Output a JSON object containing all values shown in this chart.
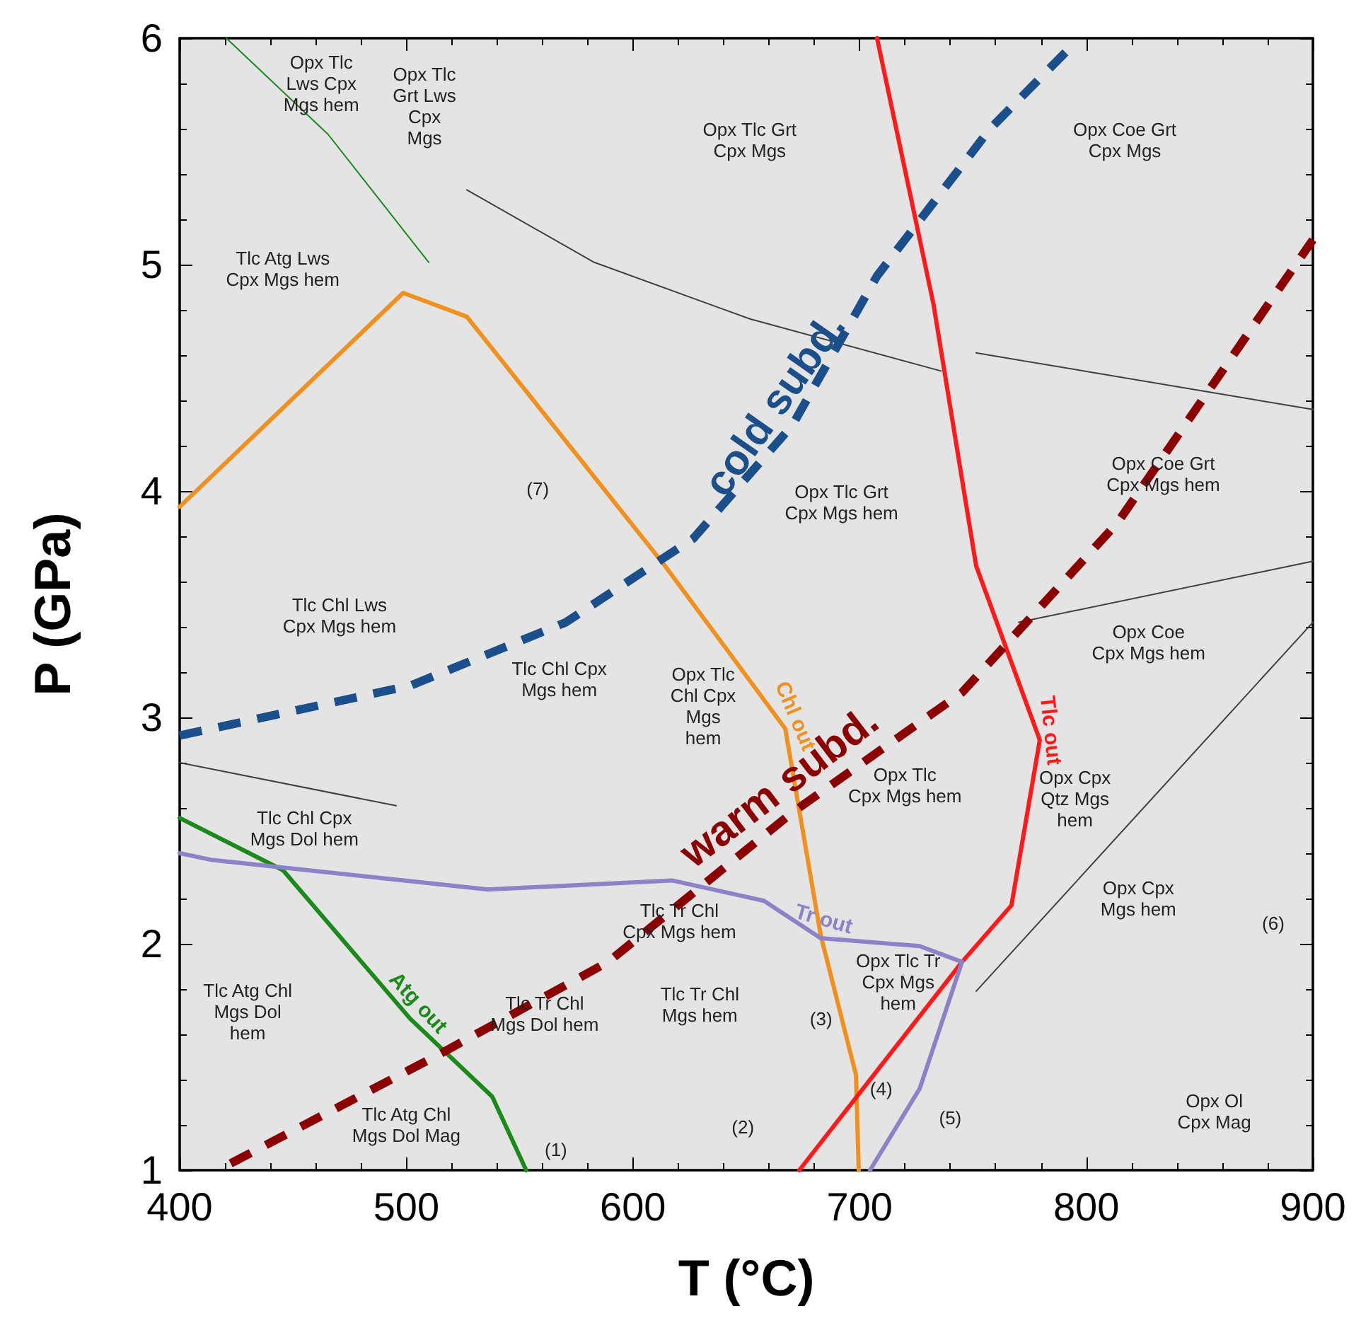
{
  "chart_data": {
    "type": "line",
    "xlabel": "T (°C)",
    "ylabel": "P (GPa)",
    "xlim": [
      400,
      900
    ],
    "xticks": [
      400,
      500,
      600,
      700,
      800,
      900
    ],
    "ylim": [
      1,
      6
    ],
    "yticks": [
      1,
      2,
      3,
      4,
      5,
      6
    ],
    "grid": false,
    "legend": false,
    "series": [
      {
        "name": "Atg out",
        "color": "#1a8a1a",
        "x": [
          400,
          445.6,
          501.7,
          537.9,
          552.9
        ],
        "values": [
          2.556,
          2.325,
          1.669,
          1.325,
          1
        ]
      },
      {
        "color": "#1a8a1a",
        "x": [
          420.6,
          465.5,
          509.9
        ],
        "values": [
          6,
          5.575,
          5.01
        ]
      },
      {
        "name": "Chl out",
        "color": "#f0901e",
        "x": [
          400,
          498.6,
          526.7,
          614.1,
          667.2,
          682.8,
          698.4,
          699.6
        ],
        "values": [
          3.93,
          4.875,
          4.77,
          3.67,
          2.95,
          2.04,
          1.42,
          1
        ]
      },
      {
        "name": "Tlc out",
        "color": "#ff1a1a",
        "x": [
          707.7,
          732.6,
          751.4,
          779.5,
          767,
          745.2,
          673.4
        ],
        "values": [
          6,
          4.825,
          3.67,
          2.9,
          2.17,
          1.92,
          1
        ]
      },
      {
        "name": "Tr out",
        "color": "#8c82c8",
        "x": [
          400,
          414.4,
          536.1,
          617.2,
          657.8,
          682.8,
          726.5,
          745.2,
          726.5,
          704.6
        ],
        "values": [
          2.4,
          2.37,
          2.24,
          2.28,
          2.19,
          2.025,
          1.99,
          1.92,
          1.36,
          1
        ]
      },
      {
        "name": "cold subd.",
        "color": "#1a4f8c",
        "line_style": "dashed",
        "x": [
          400,
          501.7,
          570.4,
          626.6,
          670.3,
          707.7,
          757.6,
          795
        ],
        "values": [
          2.92,
          3.14,
          3.42,
          3.79,
          4.29,
          4.95,
          5.6,
          5.98
        ]
      },
      {
        "name": "warm subd.",
        "color": "#8b0000",
        "line_style": "dashed",
        "x": [
          422.5,
          514.2,
          589.1,
          670.3,
          745.2,
          813.8,
          900
        ],
        "values": [
          1.03,
          1.51,
          1.92,
          2.58,
          3.11,
          3.86,
          5.11
        ]
      },
      {
        "color": "#404040",
        "x": [
          526.7,
          582.9,
          651.6,
          735.9
        ],
        "values": [
          5.33,
          5.01,
          4.76,
          4.53
        ]
      },
      {
        "color": "#404040",
        "x": [
          751.4,
          900
        ],
        "values": [
          4.61,
          4.36
        ]
      },
      {
        "color": "#404040",
        "x": [
          770.2,
          900
        ],
        "values": [
          3.42,
          3.69
        ]
      },
      {
        "color": "#404040",
        "x": [
          751.4,
          900
        ],
        "values": [
          1.79,
          3.42
        ]
      },
      {
        "color": "#404040",
        "x": [
          400,
          495.5
        ],
        "values": [
          2.8,
          2.61
        ]
      }
    ],
    "annotations": [
      "Opx Tlc\nLws Cpx\nMgs hem",
      "Opx Tlc\nGrt Lws\nCpx\nMgs",
      "Opx Tlc Grt\nCpx Mgs",
      "Opx Coe Grt\nCpx Mgs",
      "Tlc Atg Lws\nCpx Mgs hem",
      "(7)",
      "Opx Tlc Grt\nCpx Mgs hem",
      "Opx Coe Grt\nCpx Mgs hem",
      "Tlc Chl Lws\nCpx Mgs hem",
      "Tlc Chl Cpx\nMgs hem",
      "Opx Tlc\nChl Cpx\nMgs\nhem",
      "Opx Coe\nCpx Mgs hem",
      "Opx Tlc\nCpx Mgs hem",
      "Opx Cpx\nQtz Mgs\nhem",
      "Tlc Chl Cpx\nMgs Dol hem",
      "Tlc Tr Chl\nCpx Mgs hem",
      "Opx Cpx\nMgs hem",
      "(6)",
      "Tlc Atg Chl\nMgs Dol\nhem",
      "Tlc Tr Chl\nMgs Dol hem",
      "Tlc Tr Chl\nMgs hem",
      "(3)",
      "Opx Tlc Tr\nCpx Mgs\nhem",
      "(4)",
      "(5)",
      "Tlc Atg Chl\nMgs Dol Mag",
      "(1)",
      "(2)",
      "Opx Ol\nCpx Mag"
    ]
  }
}
